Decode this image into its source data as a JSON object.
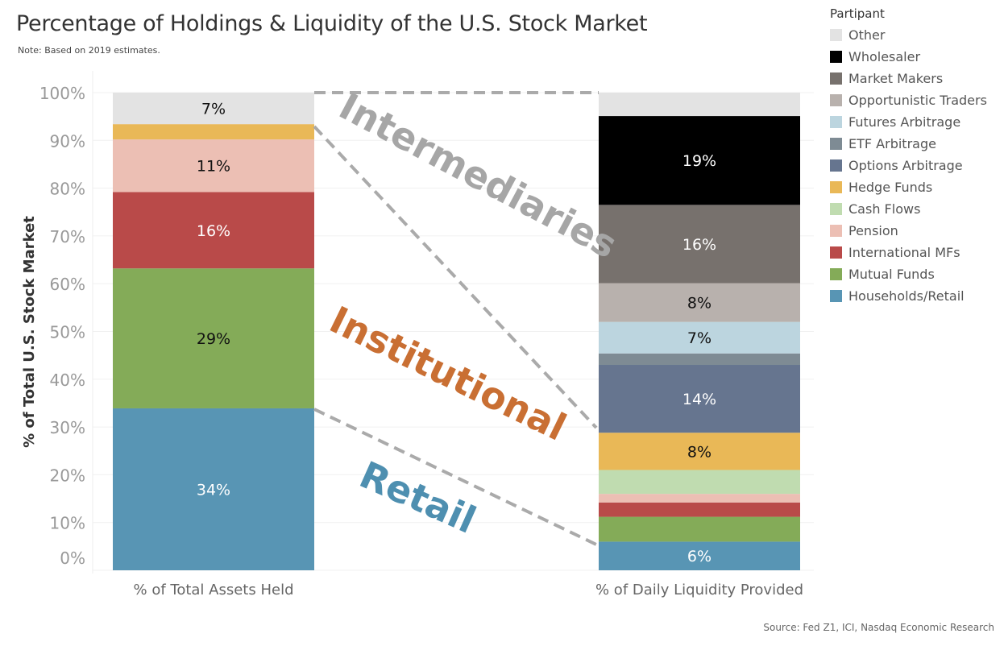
{
  "chart_data": {
    "type": "bar",
    "stacked": true,
    "title": "Percentage of Holdings & Liquidity of the U.S. Stock Market",
    "subtitle": "Note: Based on 2019 estimates.",
    "ylabel": "% of Total U.S. Stock Market",
    "ylim": [
      0,
      100
    ],
    "yticks": [
      "0%",
      "10%",
      "20%",
      "30%",
      "40%",
      "50%",
      "60%",
      "70%",
      "80%",
      "90%",
      "100%"
    ],
    "categories": [
      "% of Total Assets Held",
      "% of Daily Liquidity Provided"
    ],
    "legend_title": "Partipant",
    "legend_position": "right",
    "grid": true,
    "series": [
      {
        "name": "Households/Retail",
        "color": "#5895b4",
        "values": [
          33.9,
          6.0
        ],
        "labels": [
          "34%",
          "6%"
        ],
        "label_color": "#fff"
      },
      {
        "name": "Mutual Funds",
        "color": "#84ab58",
        "values": [
          29.3,
          5.2
        ],
        "labels": [
          "29%",
          ""
        ],
        "label_color": "#111"
      },
      {
        "name": "International MFs",
        "color": "#b94a49",
        "values": [
          16.0,
          3.0
        ],
        "labels": [
          "16%",
          ""
        ],
        "label_color": "#fff"
      },
      {
        "name": "Pension",
        "color": "#ecbfb4",
        "values": [
          11.0,
          1.8
        ],
        "labels": [
          "11%",
          ""
        ],
        "label_color": "#111"
      },
      {
        "name": "Cash Flows",
        "color": "#c0dcb0",
        "values": [
          0,
          5.0
        ],
        "labels": [
          "",
          ""
        ],
        "label_color": "#111"
      },
      {
        "name": "Hedge Funds",
        "color": "#e9b857",
        "values": [
          3.2,
          7.8
        ],
        "labels": [
          "",
          "8%"
        ],
        "label_color": "#111"
      },
      {
        "name": "Options Arbitrage",
        "color": "#66758f",
        "values": [
          0,
          14.2
        ],
        "labels": [
          "",
          "14%"
        ],
        "label_color": "#fff"
      },
      {
        "name": "ETF Arbitrage",
        "color": "#7e8b94",
        "values": [
          0,
          2.4
        ],
        "labels": [
          "",
          ""
        ],
        "label_color": "#fff"
      },
      {
        "name": "Futures Arbitrage",
        "color": "#bcd5df",
        "values": [
          0,
          6.6
        ],
        "labels": [
          "",
          "7%"
        ],
        "label_color": "#111"
      },
      {
        "name": "Opportunistic Traders",
        "color": "#b8b1ad",
        "values": [
          0,
          8.1
        ],
        "labels": [
          "",
          "8%"
        ],
        "label_color": "#111"
      },
      {
        "name": "Market Makers",
        "color": "#77716d",
        "values": [
          0,
          16.4
        ],
        "labels": [
          "",
          "16%"
        ],
        "label_color": "#fff"
      },
      {
        "name": "Wholesaler",
        "color": "#000000",
        "values": [
          0,
          18.6
        ],
        "labels": [
          "",
          "19%"
        ],
        "label_color": "#fff"
      },
      {
        "name": "Other",
        "color": "#e3e3e3",
        "values": [
          6.6,
          4.9
        ],
        "labels": [
          "7%",
          ""
        ],
        "label_color": "#111"
      }
    ],
    "annotations": [
      {
        "text": "Intermediaries",
        "color": "#a6a6a6"
      },
      {
        "text": "Institutional",
        "color": "#c96f33"
      },
      {
        "text": "Retail",
        "color": "#4e8fb0"
      }
    ],
    "source": "Source: Fed Z1, ICI, Nasdaq Economic Research"
  }
}
